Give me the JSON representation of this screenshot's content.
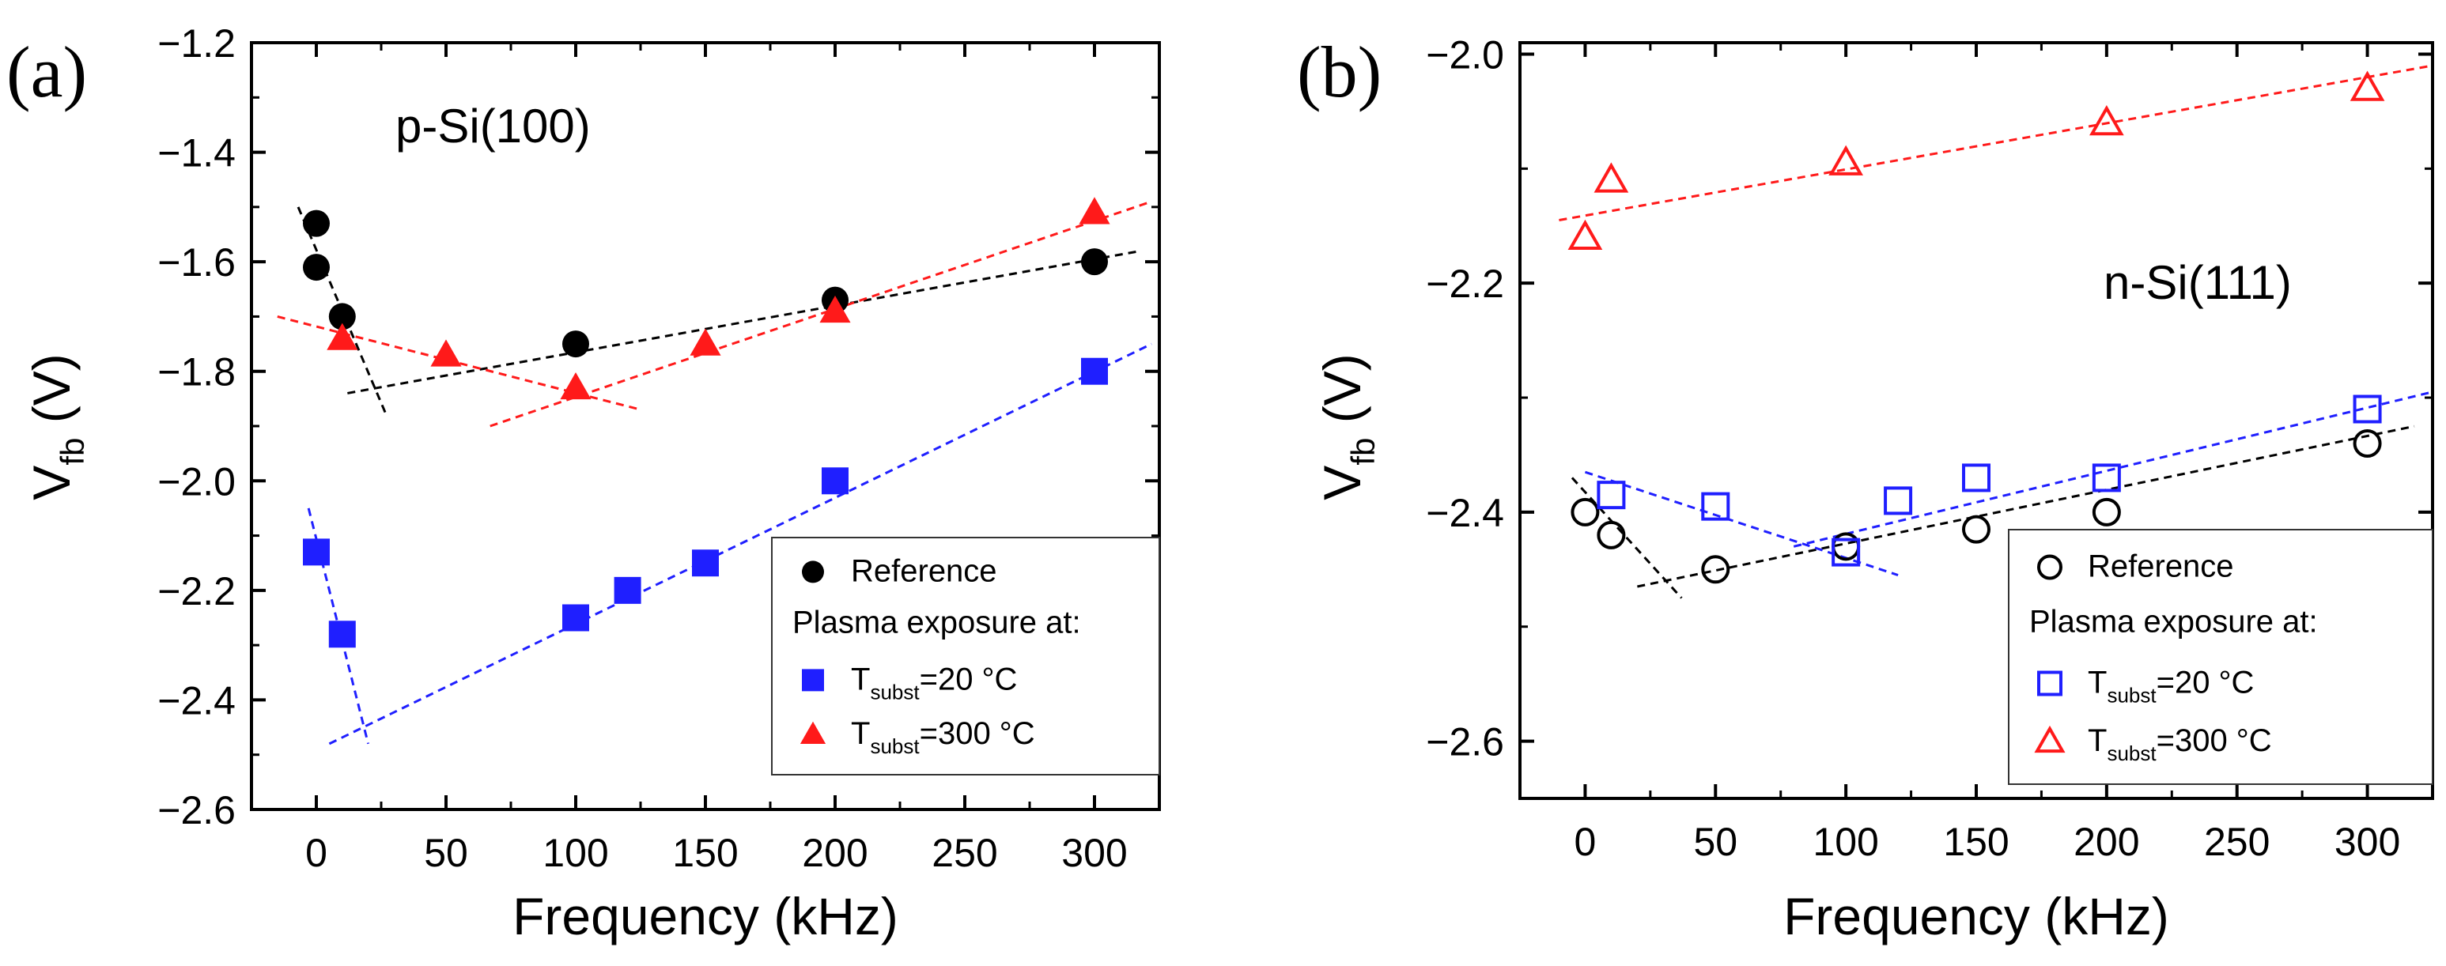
{
  "colors": {
    "reference": "#000000",
    "t20": "#1f1fff",
    "t300": "#ff1a1a",
    "axis": "#000000"
  },
  "chart_data": [
    {
      "type": "scatter",
      "panel_label": "(a)",
      "annotation": "p-Si(100)",
      "xlabel": "Frequency (kHz)",
      "ylabel_main": "V",
      "ylabel_sub": "fb",
      "ylabel_unit": "(V)",
      "xlim": [
        -25,
        325
      ],
      "ylim": [
        -2.6,
        -1.2
      ],
      "xticks": [
        0,
        50,
        100,
        150,
        200,
        250,
        300
      ],
      "xtick_labels": [
        "0",
        "50",
        "100",
        "150",
        "200",
        "250",
        "300"
      ],
      "yticks": [
        -2.6,
        -2.4,
        -2.2,
        -2.0,
        -1.8,
        -1.6,
        -1.4,
        -1.2
      ],
      "ytick_labels": [
        "−2.6",
        "−2.4",
        "−2.2",
        "−2.0",
        "−1.8",
        "−1.6",
        "−1.4",
        "−1.2"
      ],
      "filled": true,
      "series": [
        {
          "name": "Reference",
          "marker": "circle",
          "color": "#000000",
          "x": [
            0,
            0,
            10,
            100,
            200,
            300
          ],
          "y": [
            -1.53,
            -1.61,
            -1.7,
            -1.75,
            -1.67,
            -1.6
          ]
        },
        {
          "name": "T_subst=20 °C",
          "marker": "square",
          "color": "#1f1fff",
          "x": [
            0,
            10,
            100,
            120,
            150,
            200,
            300
          ],
          "y": [
            -2.13,
            -2.28,
            -2.25,
            -2.2,
            -2.15,
            -2.0,
            -1.8
          ]
        },
        {
          "name": "T_subst=300 °C",
          "marker": "triangle",
          "color": "#ff1a1a",
          "x": [
            10,
            50,
            100,
            150,
            200,
            300
          ],
          "y": [
            -1.74,
            -1.77,
            -1.83,
            -1.75,
            -1.69,
            -1.51
          ]
        }
      ],
      "fit_lines": [
        {
          "color": "#000000",
          "x": [
            -7,
            27
          ],
          "y": [
            -1.5,
            -1.88
          ]
        },
        {
          "color": "#000000",
          "x": [
            12,
            318
          ],
          "y": [
            -1.84,
            -1.58
          ]
        },
        {
          "color": "#ff1a1a",
          "x": [
            -15,
            125
          ],
          "y": [
            -1.7,
            -1.87
          ]
        },
        {
          "color": "#ff1a1a",
          "x": [
            67,
            322
          ],
          "y": [
            -1.9,
            -1.49
          ]
        },
        {
          "color": "#1f1fff",
          "x": [
            -3,
            20
          ],
          "y": [
            -2.05,
            -2.48
          ]
        },
        {
          "color": "#1f1fff",
          "x": [
            5,
            322
          ],
          "y": [
            -2.48,
            -1.75
          ]
        }
      ],
      "legend": {
        "position": "bottom-right",
        "reference": "Reference",
        "heading": "Plasma exposure at:",
        "t_prefix": "T",
        "t_sub": "subst",
        "t20_value": "=20 °C",
        "t300_value": "=300 °C"
      }
    },
    {
      "type": "scatter",
      "panel_label": "(b)",
      "annotation": "n-Si(111)",
      "xlabel": "Frequency (kHz)",
      "ylabel_main": "V",
      "ylabel_sub": "fb",
      "ylabel_unit": "(V)",
      "xlim": [
        -25,
        325
      ],
      "ylim": [
        -2.65,
        -1.99
      ],
      "xticks": [
        0,
        50,
        100,
        150,
        200,
        250,
        300
      ],
      "xtick_labels": [
        "0",
        "50",
        "100",
        "150",
        "200",
        "250",
        "300"
      ],
      "yticks": [
        -2.6,
        -2.4,
        -2.2,
        -2.0
      ],
      "ytick_labels": [
        "−2.6",
        "−2.4",
        "−2.2",
        "−2.0"
      ],
      "filled": false,
      "series": [
        {
          "name": "Reference",
          "marker": "circle",
          "color": "#000000",
          "x": [
            0,
            10,
            50,
            100,
            150,
            200,
            300
          ],
          "y": [
            -2.4,
            -2.42,
            -2.45,
            -2.43,
            -2.415,
            -2.4,
            -2.34
          ]
        },
        {
          "name": "T_subst=20 °C",
          "marker": "square",
          "color": "#1f1fff",
          "x": [
            10,
            50,
            100,
            120,
            150,
            200,
            300
          ],
          "y": [
            -2.385,
            -2.395,
            -2.435,
            -2.39,
            -2.37,
            -2.37,
            -2.31
          ]
        },
        {
          "name": "T_subst=300 °C",
          "marker": "triangle",
          "color": "#ff1a1a",
          "x": [
            0,
            10,
            100,
            200,
            300
          ],
          "y": [
            -2.16,
            -2.11,
            -2.095,
            -2.06,
            -2.03
          ]
        }
      ],
      "fit_lines": [
        {
          "color": "#000000",
          "x": [
            -5,
            37
          ],
          "y": [
            -2.37,
            -2.475
          ]
        },
        {
          "color": "#000000",
          "x": [
            20,
            318
          ],
          "y": [
            -2.465,
            -2.325
          ]
        },
        {
          "color": "#1f1fff",
          "x": [
            0,
            120
          ],
          "y": [
            -2.365,
            -2.455
          ]
        },
        {
          "color": "#1f1fff",
          "x": [
            80,
            325
          ],
          "y": [
            -2.43,
            -2.295
          ]
        },
        {
          "color": "#ff1a1a",
          "x": [
            -10,
            325
          ],
          "y": [
            -2.145,
            -2.01
          ]
        }
      ],
      "legend": {
        "position": "bottom-right",
        "reference": "Reference",
        "heading": "Plasma exposure at:",
        "t_prefix": "T",
        "t_sub": "subst",
        "t20_value": "=20 °C",
        "t300_value": "=300 °C"
      }
    }
  ]
}
